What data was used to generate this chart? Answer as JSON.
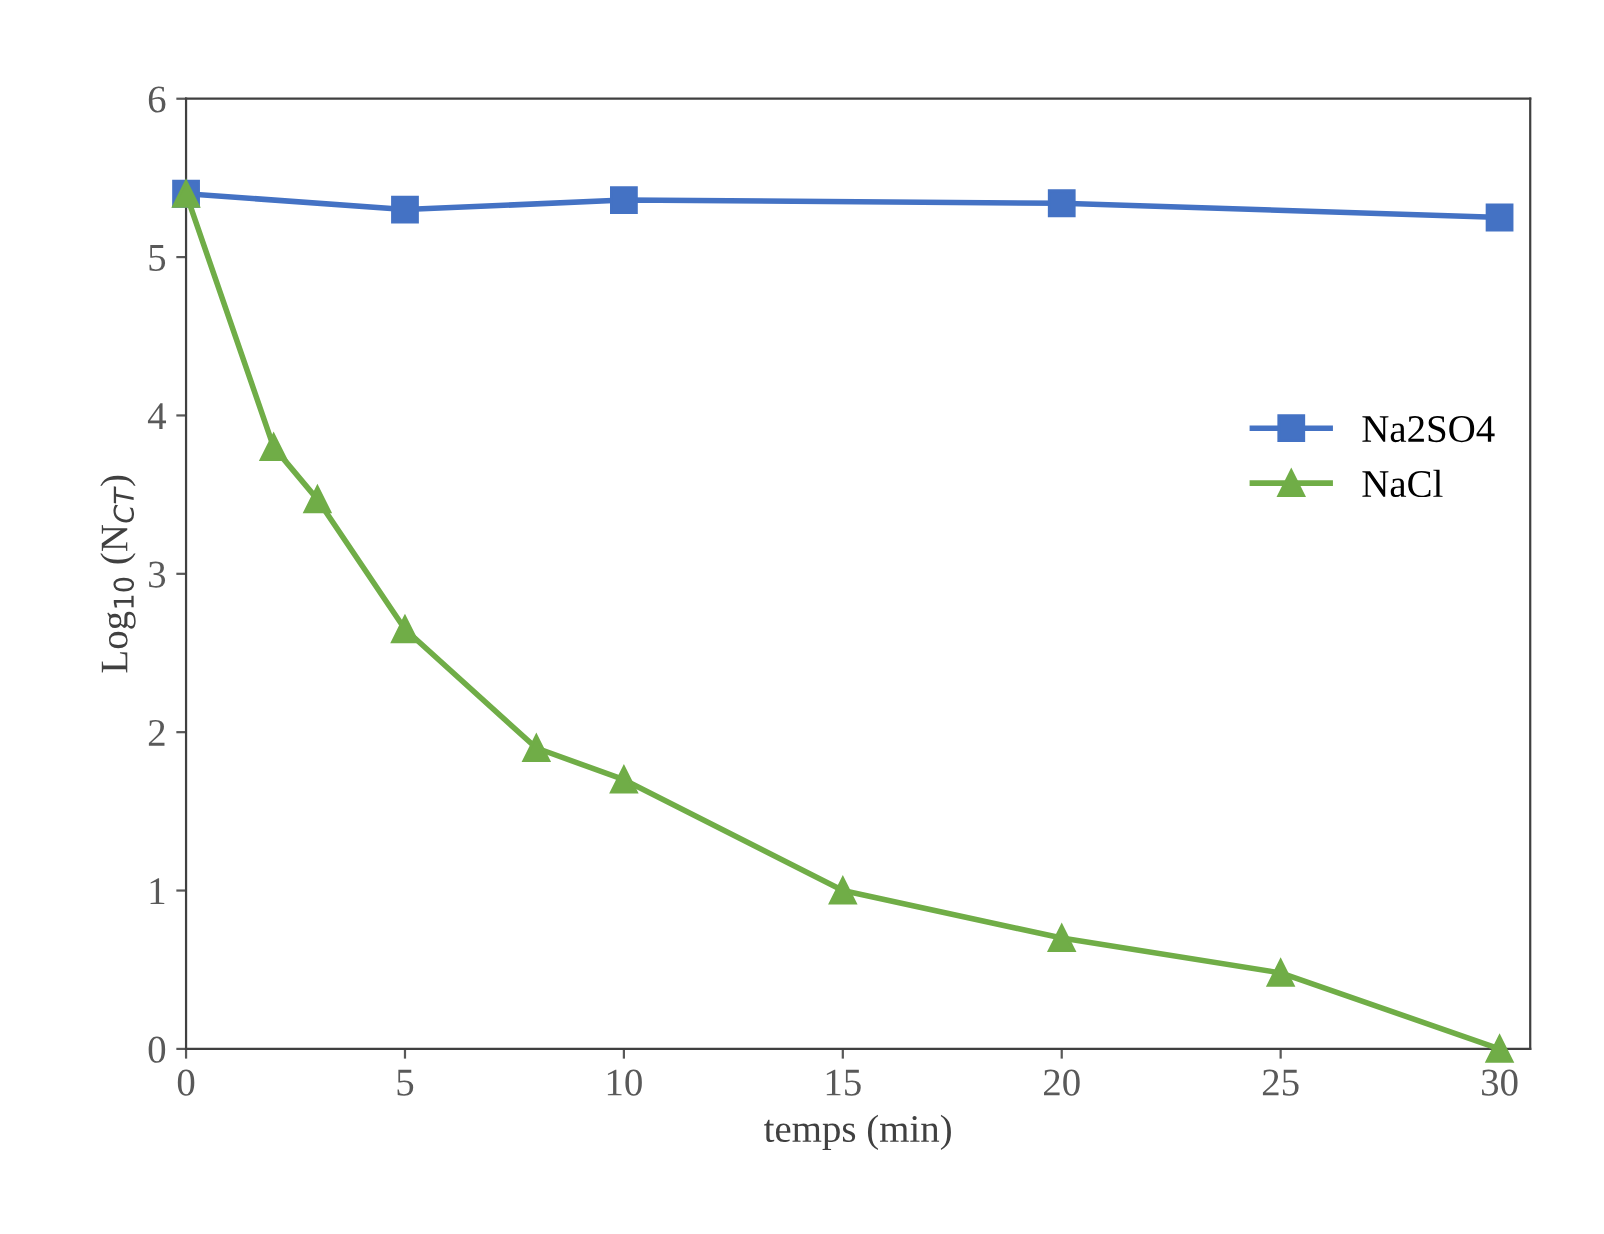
{
  "chart_data": {
    "type": "line",
    "xlabel": "temps (min)",
    "ylabel": "Log$_{10}$ (N$_{CT}$)",
    "xlim": [
      0,
      30.7
    ],
    "xticks": [
      0,
      5,
      10,
      15,
      20,
      25,
      30
    ],
    "ylim": [
      0,
      6
    ],
    "yticks": [
      0,
      1,
      2,
      3,
      4,
      5,
      6
    ],
    "grid": false,
    "legend": "right",
    "line_style": "solid",
    "series": [
      {
        "name": "Na2SO4",
        "color": "#4472c4",
        "marker": "square",
        "x": [
          0,
          5,
          10,
          20,
          30
        ],
        "values": [
          5.4,
          5.3,
          5.36,
          5.34,
          5.25
        ]
      },
      {
        "name": "NaCl",
        "color": "#70ad47",
        "marker": "triangle",
        "x": [
          0,
          2,
          3,
          5,
          8,
          10,
          15,
          20,
          25,
          30
        ],
        "values": [
          5.4,
          3.8,
          3.47,
          2.65,
          1.9,
          1.7,
          1.0,
          0.7,
          0.48,
          0.0
        ]
      }
    ]
  }
}
